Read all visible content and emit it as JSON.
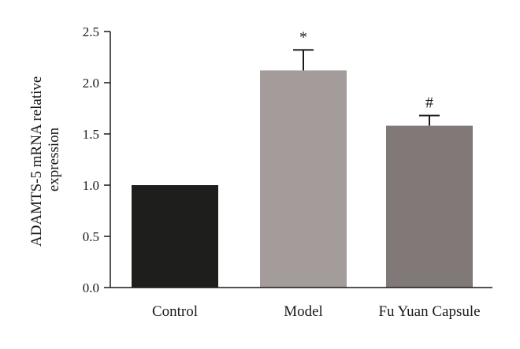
{
  "chart_data": {
    "type": "bar",
    "title": "",
    "xlabel": "",
    "ylabel_lines": [
      "ADAMTS-5 mRNA relative",
      "expression"
    ],
    "ylim": [
      0,
      2.5
    ],
    "yticks": [
      0.0,
      0.5,
      1.0,
      1.5,
      2.0,
      2.5
    ],
    "ytick_labels": [
      "0.0",
      "0.5",
      "1.0",
      "1.5",
      "2.0",
      "2.5"
    ],
    "categories": [
      "Control",
      "Model",
      "Fu Yuan Capsule"
    ],
    "values": [
      1.0,
      2.12,
      1.58
    ],
    "error_upper": [
      0.0,
      0.2,
      0.1
    ],
    "annotations": [
      "",
      "*",
      "#"
    ],
    "colors": [
      "#1e1e1c",
      "#a49c9b",
      "#817977"
    ],
    "grid": false,
    "legend": "none"
  }
}
